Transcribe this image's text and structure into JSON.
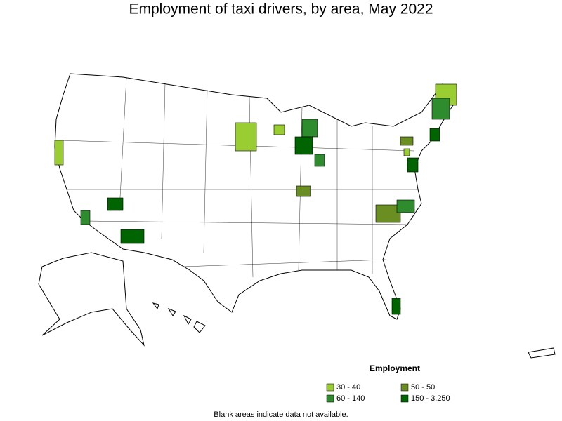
{
  "title": "Employment of taxi drivers, by area, May 2022",
  "legend": {
    "title": "Employment",
    "items": [
      {
        "label": "30 - 40",
        "color": "#9acd32"
      },
      {
        "label": "50 - 50",
        "color": "#6b8e23"
      },
      {
        "label": "60 - 140",
        "color": "#2e8b2e"
      },
      {
        "label": "150 - 3,250",
        "color": "#006400"
      }
    ]
  },
  "note": "Blank areas indicate data not available."
}
